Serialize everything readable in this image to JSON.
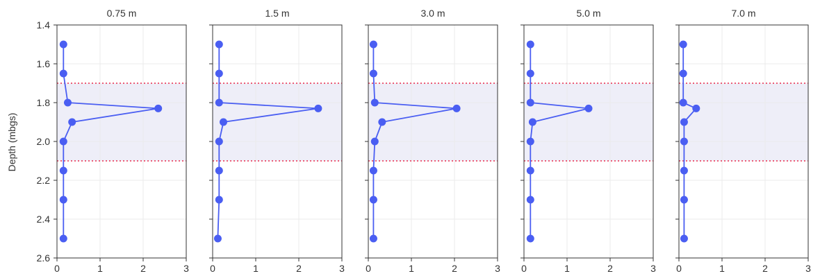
{
  "chart_data": {
    "type": "line",
    "ylabel": "Depth (mbgs)",
    "ylim": [
      2.6,
      1.4
    ],
    "y_ticks": [
      1.4,
      1.6,
      1.8,
      2.0,
      2.2,
      2.4,
      2.6
    ],
    "y_tick_labels": [
      "1.4",
      "1.6",
      "1.8",
      "2.0",
      "2.2",
      "2.4",
      "2.6"
    ],
    "xlim": [
      0,
      3
    ],
    "x_ticks": [
      0,
      1,
      2,
      3
    ],
    "x_tick_labels": [
      "0",
      "1",
      "2",
      "3"
    ],
    "y_inverted": true,
    "grid": true,
    "shaded_band": {
      "from_depth": 1.7,
      "to_depth": 2.1,
      "color": "#eeeef8",
      "line_color": "#e8294a",
      "line_style": "dotted"
    },
    "series_color": "#4a5ef2",
    "panels": [
      {
        "title": "0.75 m",
        "points": [
          [
            0.15,
            1.5
          ],
          [
            0.15,
            1.65
          ],
          [
            0.25,
            1.8
          ],
          [
            2.35,
            1.83
          ],
          [
            0.35,
            1.9
          ],
          [
            0.15,
            2.0
          ],
          [
            0.15,
            2.15
          ],
          [
            0.15,
            2.3
          ],
          [
            0.15,
            2.5
          ]
        ]
      },
      {
        "title": "1.5 m",
        "points": [
          [
            0.15,
            1.5
          ],
          [
            0.15,
            1.65
          ],
          [
            0.15,
            1.8
          ],
          [
            2.45,
            1.83
          ],
          [
            0.25,
            1.9
          ],
          [
            0.15,
            2.0
          ],
          [
            0.15,
            2.15
          ],
          [
            0.15,
            2.3
          ],
          [
            0.12,
            2.5
          ]
        ]
      },
      {
        "title": "3.0 m",
        "points": [
          [
            0.12,
            1.5
          ],
          [
            0.12,
            1.65
          ],
          [
            0.15,
            1.8
          ],
          [
            2.05,
            1.83
          ],
          [
            0.32,
            1.9
          ],
          [
            0.15,
            2.0
          ],
          [
            0.12,
            2.15
          ],
          [
            0.12,
            2.3
          ],
          [
            0.12,
            2.5
          ]
        ]
      },
      {
        "title": "5.0 m",
        "points": [
          [
            0.15,
            1.5
          ],
          [
            0.15,
            1.65
          ],
          [
            0.15,
            1.8
          ],
          [
            1.5,
            1.83
          ],
          [
            0.2,
            1.9
          ],
          [
            0.15,
            2.0
          ],
          [
            0.15,
            2.15
          ],
          [
            0.15,
            2.3
          ],
          [
            0.15,
            2.5
          ]
        ]
      },
      {
        "title": "7.0 m",
        "points": [
          [
            0.1,
            1.5
          ],
          [
            0.1,
            1.65
          ],
          [
            0.1,
            1.8
          ],
          [
            0.4,
            1.83
          ],
          [
            0.12,
            1.9
          ],
          [
            0.12,
            2.0
          ],
          [
            0.12,
            2.15
          ],
          [
            0.12,
            2.3
          ],
          [
            0.12,
            2.5
          ]
        ]
      }
    ]
  }
}
